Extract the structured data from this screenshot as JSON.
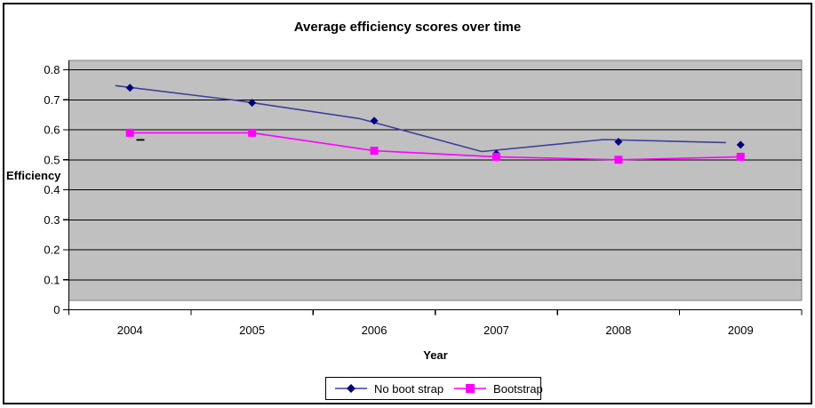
{
  "chart_data": {
    "type": "line",
    "title": "Average efficiency scores over time",
    "xlabel": "Year",
    "ylabel": "Efficiency",
    "categories": [
      "2004",
      "2005",
      "2006",
      "2007",
      "2008",
      "2009"
    ],
    "series": [
      {
        "name": "No boot strap",
        "values": [
          0.74,
          0.69,
          0.63,
          0.52,
          0.56,
          0.55
        ],
        "marker": "diamond",
        "marker_color": "#00007E",
        "line_color": "#3E3E9E"
      },
      {
        "name": "Bootstrap",
        "values": [
          0.59,
          0.59,
          0.53,
          0.51,
          0.5,
          0.51
        ],
        "marker": "square",
        "marker_color": "#FF00FF",
        "line_color": "#FF00FF"
      }
    ],
    "ylim": [
      0,
      0.8
    ],
    "ytick_step": 0.1,
    "ytick_labels": [
      "0",
      "0.1",
      "0.2",
      "0.3",
      "0.4",
      "0.5",
      "0.6",
      "0.7",
      "0.8"
    ],
    "grid": true,
    "plot_bg_color": "#C0C0C0",
    "gridline_color": "#000000",
    "legend_position": "bottom"
  }
}
